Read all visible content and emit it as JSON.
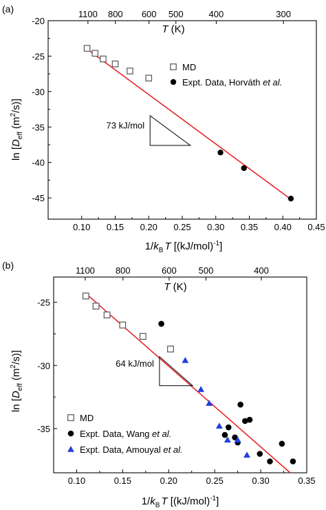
{
  "chart_data": [
    {
      "type": "scatter",
      "panel_label": "(a)",
      "xlabel_parts": {
        "pre": "1/",
        "k": "k",
        "sub": "B",
        "t": "T",
        "post": " [(kJ/mol)",
        "sup": "-1",
        "close": "]"
      },
      "ylabel_parts": {
        "pre": "ln [",
        "d": "D",
        "sub": "eff",
        "mid": " (m",
        "sup": "2",
        "post": "/s)]"
      },
      "top_axis_title": "T (K)",
      "xlim": [
        0.05,
        0.45
      ],
      "ylim": [
        -48,
        -20
      ],
      "x_ticks": [
        0.1,
        0.15,
        0.2,
        0.25,
        0.3,
        0.35,
        0.4,
        0.45
      ],
      "x_tick_labels": [
        "0.10",
        "0.15",
        "0.20",
        "0.25",
        "0.30",
        "0.35",
        "0.40",
        "0.45"
      ],
      "y_ticks": [
        -45,
        -40,
        -35,
        -30,
        -25,
        -20
      ],
      "y_tick_labels": [
        "-45",
        "-40",
        "-35",
        "-30",
        "-25",
        "-20"
      ],
      "top_ticks_K": [
        1100,
        800,
        600,
        500,
        400,
        300
      ],
      "top_tick_labels": [
        "1100",
        "800",
        "600",
        "500",
        "400",
        "300"
      ],
      "series": [
        {
          "name": "MD",
          "marker": "open-square",
          "color": "#555555",
          "x": [
            0.108,
            0.12,
            0.132,
            0.15,
            0.172,
            0.2
          ],
          "y": [
            -23.9,
            -24.6,
            -25.4,
            -26.1,
            -27.1,
            -28.1
          ]
        },
        {
          "name": "Expt. Data, Horváth et al.",
          "legend_pre": "Expt. Data, Horváth ",
          "legend_em": "et al.",
          "marker": "filled-circle",
          "color": "#000000",
          "x": [
            0.307,
            0.342,
            0.412
          ],
          "y": [
            -38.6,
            -40.8,
            -45.1
          ]
        }
      ],
      "fit_line": {
        "color": "#e41a1c",
        "x": [
          0.105,
          0.412
        ],
        "y": [
          -23.8,
          -45.2
        ]
      },
      "slope_annotation": "73 kJ/mol",
      "slope_triangle": {
        "x": [
          0.202,
          0.202,
          0.262
        ],
        "y": [
          -33.4,
          -37.6,
          -37.6
        ]
      },
      "legend_position": "top-right"
    },
    {
      "type": "scatter",
      "panel_label": "(b)",
      "xlabel_parts": {
        "pre": "1/",
        "k": "k",
        "sub": "B",
        "t": "T",
        "post": " [(kJ/mol)",
        "sup": "-1",
        "close": "]"
      },
      "ylabel_parts": {
        "pre": "ln [",
        "d": "D",
        "sub": "eff",
        "mid": " (m",
        "sup": "2",
        "post": "/s)]"
      },
      "top_axis_title": "T (K)",
      "xlim": [
        0.075,
        0.35
      ],
      "ylim": [
        -38.5,
        -23
      ],
      "x_ticks": [
        0.1,
        0.15,
        0.2,
        0.25,
        0.3,
        0.35
      ],
      "x_tick_labels": [
        "0.10",
        "0.15",
        "0.20",
        "0.25",
        "0.30",
        "0.35"
      ],
      "y_ticks": [
        -35,
        -30,
        -25
      ],
      "y_tick_labels": [
        "-35",
        "-30",
        "-25"
      ],
      "top_ticks_K": [
        1100,
        800,
        600,
        500,
        400
      ],
      "top_tick_labels": [
        "1100",
        "800",
        "600",
        "500",
        "400"
      ],
      "series": [
        {
          "name": "MD",
          "marker": "open-square",
          "color": "#555555",
          "x": [
            0.11,
            0.121,
            0.133,
            0.15,
            0.172,
            0.202
          ],
          "y": [
            -24.5,
            -25.3,
            -26.0,
            -26.8,
            -27.7,
            -28.7
          ]
        },
        {
          "name": "Expt. Data, Wang et al.",
          "legend_pre": "Expt. Data, Wang ",
          "legend_em": "et al.",
          "marker": "filled-circle",
          "color": "#000000",
          "x": [
            0.192,
            0.261,
            0.265,
            0.272,
            0.275,
            0.278,
            0.283,
            0.288,
            0.299,
            0.31,
            0.323,
            0.335
          ],
          "y": [
            -26.7,
            -35.5,
            -34.9,
            -35.7,
            -36.1,
            -33.1,
            -34.4,
            -34.3,
            -37.0,
            -37.6,
            -36.2,
            -37.6
          ]
        },
        {
          "name": "Expt. Data, Amouyal et al.",
          "legend_pre": "Expt. Data, Amouyal ",
          "legend_em": "et al.",
          "marker": "filled-triangle",
          "color": "#1f3fe0",
          "x": [
            0.218,
            0.235,
            0.244,
            0.255,
            0.264,
            0.275,
            0.285
          ],
          "y": [
            -29.6,
            -31.9,
            -33.0,
            -34.8,
            -35.9,
            -35.9,
            -37.1
          ]
        }
      ],
      "fit_line": {
        "color": "#e41a1c",
        "x": [
          0.11,
          0.332
        ],
        "y": [
          -24.3,
          -38.5
        ]
      },
      "slope_annotation": "64 kJ/mol",
      "slope_triangle": {
        "x": [
          0.19,
          0.19,
          0.226
        ],
        "y": [
          -29.3,
          -31.6,
          -31.6
        ]
      },
      "legend_position": "bottom-left"
    }
  ]
}
